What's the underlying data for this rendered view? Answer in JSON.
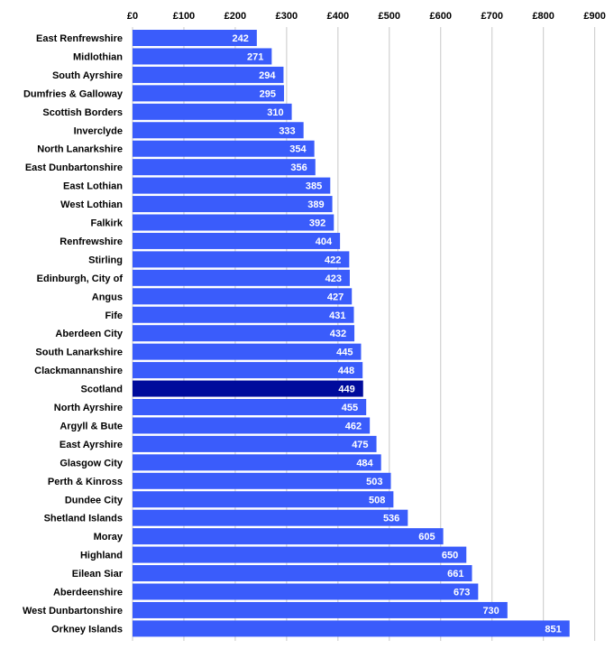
{
  "chart_data": {
    "type": "bar",
    "orientation": "horizontal",
    "title": "",
    "xlabel": "",
    "ylabel": "",
    "xlim": [
      0,
      900
    ],
    "ticks": [
      "£0",
      "£100",
      "£200",
      "£300",
      "£400",
      "£500",
      "£600",
      "£700",
      "£800",
      "£900"
    ],
    "tick_values": [
      0,
      100,
      200,
      300,
      400,
      500,
      600,
      700,
      800,
      900
    ],
    "axis_position": "top",
    "grid": true,
    "legend": false,
    "colors": {
      "bar": "#3A5CFB",
      "highlight": "#000B9C",
      "grid": "#C8C8C8"
    },
    "highlight_category": "Scotland",
    "categories": [
      "East Renfrewshire",
      "Midlothian",
      "South Ayrshire",
      "Dumfries & Galloway",
      "Scottish Borders",
      "Inverclyde",
      "North Lanarkshire",
      "East Dunbartonshire",
      "East Lothian",
      "West Lothian",
      "Falkirk",
      "Renfrewshire",
      "Stirling",
      "Edinburgh, City of",
      "Angus",
      "Fife",
      "Aberdeen City",
      "South Lanarkshire",
      "Clackmannanshire",
      "Scotland",
      "North Ayrshire",
      "Argyll & Bute",
      "East Ayrshire",
      "Glasgow City",
      "Perth & Kinross",
      "Dundee City",
      "Shetland Islands",
      "Moray",
      "Highland",
      "Eilean Siar",
      "Aberdeenshire",
      "West Dunbartonshire",
      "Orkney Islands"
    ],
    "values": [
      242,
      271,
      294,
      295,
      310,
      333,
      354,
      356,
      385,
      389,
      392,
      404,
      422,
      423,
      427,
      431,
      432,
      445,
      448,
      449,
      455,
      462,
      475,
      484,
      503,
      508,
      536,
      605,
      650,
      661,
      673,
      730,
      851
    ]
  }
}
